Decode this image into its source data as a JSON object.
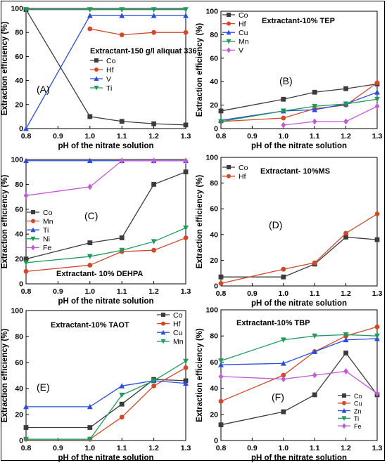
{
  "figure": {
    "border_color": "#000000"
  },
  "chart_data": [
    {
      "panel": "(A)",
      "type": "line",
      "title": "",
      "annotation": "Extractant-150 g/l aliquat 336",
      "xlabel": "pH of the nitrate solution",
      "ylabel": "Extraction efficiency (%)",
      "x_ticks": [
        "0.8",
        "0.9",
        "1.0",
        "1.1",
        "1.2",
        "1.3"
      ],
      "y_ticks": [
        "0",
        "20",
        "40",
        "60",
        "80",
        "100"
      ],
      "xlim": [
        0.8,
        1.3
      ],
      "ylim": [
        0,
        100
      ],
      "legend_position": "center-right",
      "series": [
        {
          "name": "Co",
          "color": "#3c3c3c",
          "marker": "square",
          "x": [
            0.8,
            1.0,
            1.1,
            1.2,
            1.3
          ],
          "y": [
            99,
            10,
            6,
            4,
            3
          ]
        },
        {
          "name": "Hf",
          "color": "#d2492a",
          "marker": "circle",
          "x": [
            1.0,
            1.1,
            1.2,
            1.3
          ],
          "y": [
            83,
            78,
            80,
            80
          ]
        },
        {
          "name": "V",
          "color": "#2a4de0",
          "marker": "triangle-up",
          "x": [
            0.8,
            1.0,
            1.1,
            1.2,
            1.3
          ],
          "y": [
            0,
            94,
            94,
            94,
            94
          ]
        },
        {
          "name": "Ti",
          "color": "#1f9a5a",
          "marker": "triangle-down",
          "x": [
            0.8,
            1.0,
            1.1,
            1.2,
            1.3
          ],
          "y": [
            99,
            99,
            99,
            99,
            99
          ]
        }
      ]
    },
    {
      "panel": "(B)",
      "type": "line",
      "title": "",
      "annotation": "Extractant-10% TEP",
      "xlabel": "pH of the nitrate solution",
      "ylabel": "Extraction efficiency (%)",
      "x_ticks": [
        "0.8",
        "0.9",
        "1.0",
        "1.1",
        "1.2",
        "1.3"
      ],
      "y_ticks": [
        "0",
        "20",
        "40",
        "60",
        "80",
        "100"
      ],
      "xlim": [
        0.8,
        1.3
      ],
      "ylim": [
        0,
        100
      ],
      "legend_position": "top-left",
      "series": [
        {
          "name": "Co",
          "color": "#3c3c3c",
          "marker": "square",
          "x": [
            0.8,
            1.0,
            1.1,
            1.2,
            1.3
          ],
          "y": [
            15,
            25,
            31,
            34,
            38
          ]
        },
        {
          "name": "Hf",
          "color": "#d2492a",
          "marker": "circle",
          "x": [
            0.8,
            1.0,
            1.1,
            1.2,
            1.3
          ],
          "y": [
            6,
            9,
            17,
            20,
            39
          ]
        },
        {
          "name": "Cu",
          "color": "#2a4de0",
          "marker": "triangle-up",
          "x": [
            0.8,
            1.0,
            1.1,
            1.2,
            1.3
          ],
          "y": [
            7,
            15,
            16,
            21,
            31
          ]
        },
        {
          "name": "Mn",
          "color": "#1f9a5a",
          "marker": "triangle-down",
          "x": [
            0.8,
            1.0,
            1.1,
            1.2,
            1.3
          ],
          "y": [
            6,
            15,
            19,
            21,
            25
          ]
        },
        {
          "name": "V",
          "color": "#c45ad8",
          "marker": "diamond",
          "x": [
            1.0,
            1.1,
            1.2,
            1.3
          ],
          "y": [
            3,
            6,
            6,
            19
          ]
        }
      ]
    },
    {
      "panel": "(C)",
      "type": "line",
      "title": "",
      "annotation": "Extractant- 10% DEHPA",
      "xlabel": "pH of the nitrate solution",
      "ylabel": "Extraction efficiency (%)",
      "x_ticks": [
        "0.8",
        "0.9",
        "1.0",
        "1.1",
        "1.2",
        "1.3"
      ],
      "y_ticks": [
        "0",
        "20",
        "40",
        "60",
        "80",
        "100"
      ],
      "xlim": [
        0.8,
        1.3
      ],
      "ylim": [
        0,
        100
      ],
      "legend_position": "center-left",
      "series": [
        {
          "name": "Co",
          "color": "#3c3c3c",
          "marker": "square",
          "x": [
            0.8,
            1.0,
            1.1,
            1.2,
            1.3
          ],
          "y": [
            20,
            33,
            37,
            80,
            90
          ]
        },
        {
          "name": "Mn",
          "color": "#d2492a",
          "marker": "circle",
          "x": [
            0.8,
            1.0,
            1.1,
            1.2,
            1.3
          ],
          "y": [
            10,
            15,
            26,
            27,
            37
          ]
        },
        {
          "name": "Ti",
          "color": "#2a4de0",
          "marker": "triangle-up",
          "x": [
            0.8,
            1.0,
            1.1,
            1.2,
            1.3
          ],
          "y": [
            99,
            99,
            99,
            99,
            99
          ]
        },
        {
          "name": "Ni",
          "color": "#1f9a5a",
          "marker": "triangle-down",
          "x": [
            0.8,
            1.0,
            1.1,
            1.2,
            1.3
          ],
          "y": [
            17,
            22,
            27,
            34,
            45
          ]
        },
        {
          "name": "Fe",
          "color": "#c45ad8",
          "marker": "diamond",
          "x": [
            0.8,
            1.0,
            1.1,
            1.2,
            1.3
          ],
          "y": [
            71,
            78,
            99,
            99,
            99
          ]
        }
      ]
    },
    {
      "panel": "(D)",
      "type": "line",
      "title": "",
      "annotation": "Extractant- 10%MS",
      "xlabel": "pH of the nitrate solution",
      "ylabel": "Extraction efficiency (%)",
      "x_ticks": [
        "0.8",
        "0.9",
        "1.0",
        "1.1",
        "1.2",
        "1.3"
      ],
      "y_ticks": [
        "0",
        "20",
        "40",
        "60",
        "80",
        "100"
      ],
      "xlim": [
        0.8,
        1.3
      ],
      "ylim": [
        0,
        100
      ],
      "legend_position": "top-left",
      "series": [
        {
          "name": "Co",
          "color": "#3c3c3c",
          "marker": "square",
          "x": [
            0.8,
            1.0,
            1.1,
            1.2,
            1.3
          ],
          "y": [
            7,
            7,
            17,
            38,
            36
          ]
        },
        {
          "name": "Hf",
          "color": "#d2492a",
          "marker": "circle",
          "x": [
            0.8,
            1.0,
            1.1,
            1.2,
            1.3
          ],
          "y": [
            2,
            13,
            18,
            41,
            56
          ]
        }
      ]
    },
    {
      "panel": "(E)",
      "type": "line",
      "title": "",
      "annotation": "Extractant-10% TAOT",
      "xlabel": "pH of the nitrate solution",
      "ylabel": "Extraction efficiency (%)",
      "x_ticks": [
        "0.8",
        "0.9",
        "1.0",
        "1.1",
        "1.2",
        "1.3"
      ],
      "y_ticks": [
        "0",
        "20",
        "40",
        "60",
        "80",
        "100"
      ],
      "xlim": [
        0.8,
        1.3
      ],
      "ylim": [
        0,
        100
      ],
      "legend_position": "top-right",
      "series": [
        {
          "name": "Co",
          "color": "#3c3c3c",
          "marker": "square",
          "x": [
            0.8,
            1.0,
            1.1,
            1.2,
            1.3
          ],
          "y": [
            10,
            10,
            28,
            47,
            46
          ]
        },
        {
          "name": "Hf",
          "color": "#d2492a",
          "marker": "circle",
          "x": [
            0.8,
            1.0,
            1.1,
            1.2,
            1.3
          ],
          "y": [
            1,
            1,
            18,
            42,
            56
          ]
        },
        {
          "name": "Cu",
          "color": "#2a4de0",
          "marker": "triangle-up",
          "x": [
            0.8,
            1.0,
            1.1,
            1.2,
            1.3
          ],
          "y": [
            26,
            26,
            42,
            46,
            44
          ]
        },
        {
          "name": "Mn",
          "color": "#1f9a5a",
          "marker": "triangle-down",
          "x": [
            0.8,
            1.0,
            1.1,
            1.2,
            1.3
          ],
          "y": [
            1,
            1,
            35,
            46,
            61
          ]
        }
      ]
    },
    {
      "panel": "(F)",
      "type": "line",
      "title": "",
      "annotation": "Extractant-10% TBP",
      "xlabel": "pH of the nitrate solution",
      "ylabel": "Extraction efficiency (%)",
      "x_ticks": [
        "0.8",
        "0.9",
        "1.0",
        "1.1",
        "1.2",
        "1.3"
      ],
      "y_ticks": [
        "0",
        "20",
        "40",
        "60",
        "80",
        "100"
      ],
      "xlim": [
        0.8,
        1.3
      ],
      "ylim": [
        0,
        100
      ],
      "legend_position": "bottom-left",
      "series": [
        {
          "name": "Co",
          "color": "#3c3c3c",
          "marker": "square",
          "x": [
            0.8,
            1.0,
            1.1,
            1.2,
            1.3
          ],
          "y": [
            12,
            22,
            35,
            67,
            35
          ]
        },
        {
          "name": "Cu",
          "color": "#d2492a",
          "marker": "circle",
          "x": [
            0.8,
            1.0,
            1.1,
            1.2,
            1.3
          ],
          "y": [
            30,
            50,
            68,
            80,
            87
          ]
        },
        {
          "name": "Zn",
          "color": "#2a4de0",
          "marker": "triangle-up",
          "x": [
            0.8,
            1.0,
            1.1,
            1.2,
            1.3
          ],
          "y": [
            58,
            59,
            68,
            77,
            78
          ]
        },
        {
          "name": "Ti",
          "color": "#1f9a5a",
          "marker": "triangle-down",
          "x": [
            0.8,
            1.0,
            1.1,
            1.2,
            1.3
          ],
          "y": [
            61,
            77,
            80,
            81,
            80
          ]
        },
        {
          "name": "Fe",
          "color": "#c45ad8",
          "marker": "diamond",
          "x": [
            0.8,
            1.0,
            1.1,
            1.2,
            1.3
          ],
          "y": [
            49,
            47,
            50,
            53,
            36
          ]
        }
      ]
    }
  ]
}
